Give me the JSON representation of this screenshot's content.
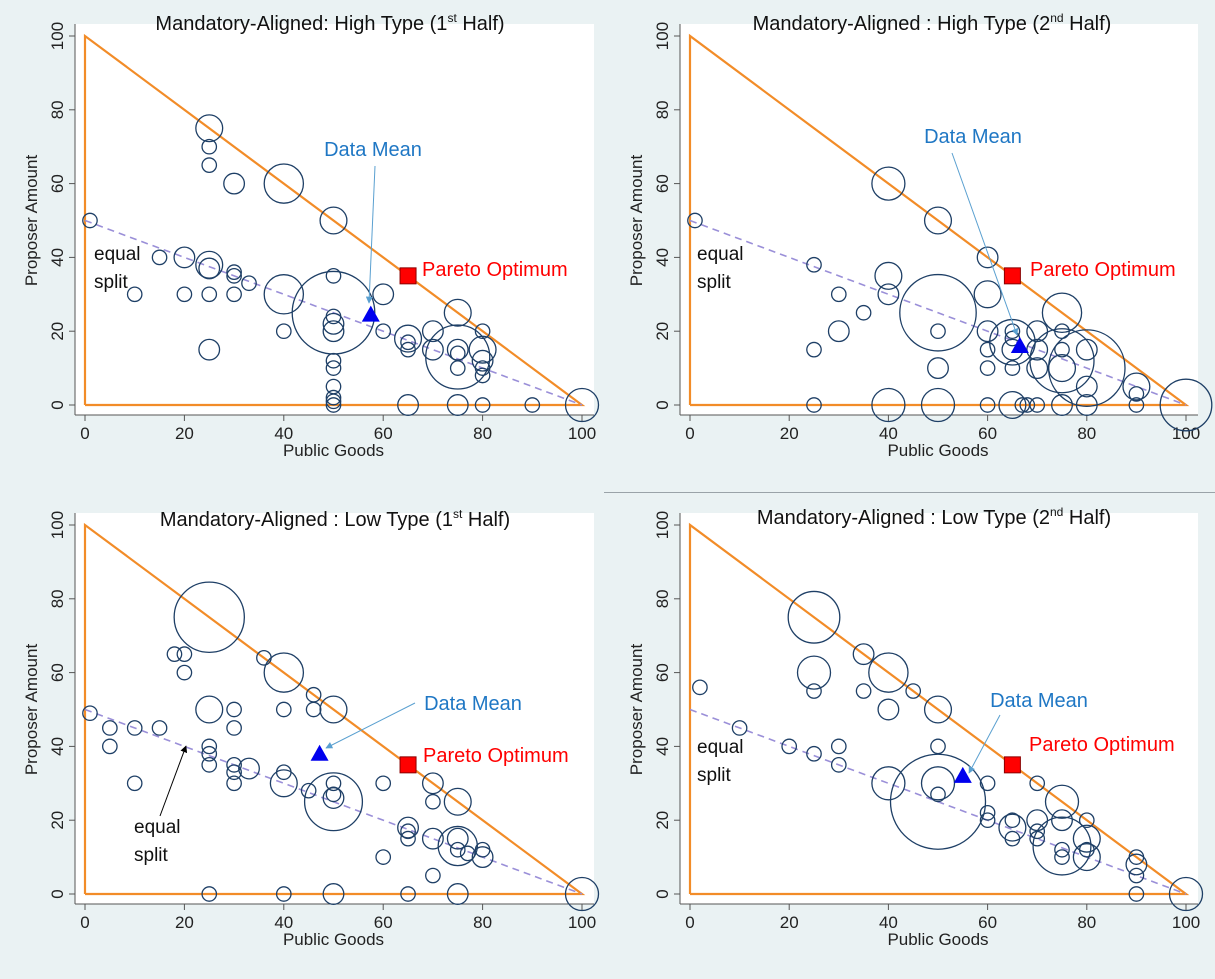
{
  "colors": {
    "background": "#eaf2f3",
    "plot_area": "#ffffff",
    "triangle": "#f28c28",
    "equal_split": "#9a8fd8",
    "bubble": "#1e3f66",
    "data_mean_label": "#1f77c4",
    "pareto_label": "#ff0000",
    "pareto_marker": "#ff0000",
    "mean_marker": "#0000ee",
    "arrow_mean": "#5aa0d0",
    "arrow_equal": "#000000"
  },
  "labels": {
    "data_mean": "Data Mean",
    "pareto": "Pareto Optimum",
    "equal_split_line1": "equal",
    "equal_split_line2": "split"
  },
  "chart_data": [
    {
      "type": "scatter",
      "title": "Mandatory-Aligned: High Type (1",
      "title_sup": "st",
      "title_end": " Half)",
      "xlabel": "Public Goods",
      "ylabel": "Proposer Amount",
      "xlim": [
        0,
        100
      ],
      "ylim": [
        0,
        100
      ],
      "xticks": [
        0,
        20,
        40,
        60,
        80,
        100
      ],
      "yticks": [
        0,
        20,
        40,
        60,
        80,
        100
      ],
      "grid": false,
      "pareto_optimum": [
        65,
        35
      ],
      "data_mean": [
        57.5,
        24.5
      ],
      "equal_split_line": [
        [
          0,
          50
        ],
        [
          100,
          0
        ]
      ],
      "points": [
        [
          1,
          50,
          2
        ],
        [
          10,
          30,
          2
        ],
        [
          15,
          40,
          2
        ],
        [
          20,
          40,
          3
        ],
        [
          20,
          30,
          2
        ],
        [
          25,
          75,
          4
        ],
        [
          25,
          70,
          2
        ],
        [
          25,
          65,
          2
        ],
        [
          25,
          38,
          4
        ],
        [
          25,
          37,
          3
        ],
        [
          25,
          30,
          2
        ],
        [
          25,
          15,
          3
        ],
        [
          30,
          60,
          3
        ],
        [
          30,
          36,
          2
        ],
        [
          30,
          35,
          2
        ],
        [
          30,
          30,
          2
        ],
        [
          33,
          33,
          2
        ],
        [
          40,
          60,
          6
        ],
        [
          40,
          30,
          6
        ],
        [
          40,
          20,
          2
        ],
        [
          50,
          50,
          4
        ],
        [
          50,
          35,
          2
        ],
        [
          50,
          25,
          13
        ],
        [
          50,
          24,
          2
        ],
        [
          50,
          22,
          3
        ],
        [
          50,
          20,
          3
        ],
        [
          50,
          12,
          2
        ],
        [
          50,
          10,
          2
        ],
        [
          50,
          5,
          2
        ],
        [
          50,
          2,
          2
        ],
        [
          50,
          1,
          2
        ],
        [
          50,
          0,
          2
        ],
        [
          60,
          30,
          3
        ],
        [
          60,
          20,
          2
        ],
        [
          65,
          18,
          4
        ],
        [
          65,
          17,
          2
        ],
        [
          65,
          15,
          2
        ],
        [
          65,
          0,
          3
        ],
        [
          70,
          20,
          3
        ],
        [
          70,
          15,
          3
        ],
        [
          75,
          25,
          4
        ],
        [
          75,
          15,
          3
        ],
        [
          75,
          14,
          2
        ],
        [
          75,
          13,
          10
        ],
        [
          75,
          10,
          2
        ],
        [
          75,
          0,
          3
        ],
        [
          80,
          20,
          2
        ],
        [
          80,
          15,
          4
        ],
        [
          80,
          12,
          3
        ],
        [
          80,
          10,
          2
        ],
        [
          80,
          8,
          2
        ],
        [
          80,
          0,
          2
        ],
        [
          90,
          0,
          2
        ],
        [
          100,
          0,
          5
        ]
      ]
    },
    {
      "type": "scatter",
      "title": "Mandatory-Aligned : High Type (2",
      "title_sup": "nd",
      "title_end": " Half)",
      "xlabel": "Public Goods",
      "ylabel": "Proposer Amount",
      "xlim": [
        0,
        100
      ],
      "ylim": [
        0,
        100
      ],
      "xticks": [
        0,
        20,
        40,
        60,
        80,
        100
      ],
      "yticks": [
        0,
        20,
        40,
        60,
        80,
        100
      ],
      "grid": false,
      "pareto_optimum": [
        65,
        35
      ],
      "data_mean": [
        66.5,
        16
      ],
      "equal_split_line": [
        [
          0,
          50
        ],
        [
          100,
          0
        ]
      ],
      "points": [
        [
          1,
          50,
          2
        ],
        [
          25,
          38,
          2
        ],
        [
          25,
          15,
          2
        ],
        [
          25,
          0,
          2
        ],
        [
          30,
          30,
          2
        ],
        [
          30,
          20,
          3
        ],
        [
          35,
          25,
          2
        ],
        [
          40,
          60,
          5
        ],
        [
          40,
          35,
          4
        ],
        [
          40,
          30,
          3
        ],
        [
          40,
          0,
          5
        ],
        [
          50,
          50,
          4
        ],
        [
          50,
          25,
          12
        ],
        [
          50,
          20,
          2
        ],
        [
          50,
          10,
          3
        ],
        [
          50,
          0,
          5
        ],
        [
          60,
          40,
          3
        ],
        [
          60,
          30,
          4
        ],
        [
          60,
          20,
          3
        ],
        [
          60,
          15,
          2
        ],
        [
          60,
          10,
          2
        ],
        [
          60,
          0,
          2
        ],
        [
          65,
          20,
          2
        ],
        [
          65,
          18,
          2
        ],
        [
          65,
          17,
          7
        ],
        [
          65,
          15,
          3
        ],
        [
          65,
          10,
          2
        ],
        [
          65,
          0,
          4
        ],
        [
          67,
          0,
          2
        ],
        [
          68,
          0,
          2
        ],
        [
          70,
          20,
          3
        ],
        [
          70,
          15,
          3
        ],
        [
          70,
          10,
          3
        ],
        [
          70,
          0,
          2
        ],
        [
          75,
          25,
          6
        ],
        [
          75,
          20,
          2
        ],
        [
          75,
          15,
          2
        ],
        [
          75,
          12,
          10
        ],
        [
          75,
          10,
          4
        ],
        [
          75,
          0,
          3
        ],
        [
          80,
          15,
          3
        ],
        [
          80,
          10,
          12
        ],
        [
          80,
          5,
          3
        ],
        [
          80,
          0,
          3
        ],
        [
          90,
          5,
          4
        ],
        [
          90,
          3,
          2
        ],
        [
          90,
          0,
          2
        ],
        [
          100,
          0,
          8
        ]
      ]
    },
    {
      "type": "scatter",
      "title": "Mandatory-Aligned : Low Type (1",
      "title_sup": "st",
      "title_end": " Half)",
      "xlabel": "Public Goods",
      "ylabel": "Proposer Amount",
      "xlim": [
        0,
        100
      ],
      "ylim": [
        0,
        100
      ],
      "xticks": [
        0,
        20,
        40,
        60,
        80,
        100
      ],
      "yticks": [
        0,
        20,
        40,
        60,
        80,
        100
      ],
      "grid": false,
      "pareto_optimum": [
        65,
        35
      ],
      "data_mean": [
        47.2,
        38
      ],
      "equal_split_line": [
        [
          0,
          50
        ],
        [
          100,
          0
        ]
      ],
      "points": [
        [
          1,
          49,
          2
        ],
        [
          5,
          45,
          2
        ],
        [
          5,
          40,
          2
        ],
        [
          10,
          45,
          2
        ],
        [
          10,
          30,
          2
        ],
        [
          15,
          45,
          2
        ],
        [
          18,
          65,
          2
        ],
        [
          20,
          65,
          2
        ],
        [
          20,
          60,
          2
        ],
        [
          25,
          75,
          11
        ],
        [
          25,
          50,
          4
        ],
        [
          25,
          40,
          2
        ],
        [
          25,
          38,
          2
        ],
        [
          25,
          35,
          2
        ],
        [
          25,
          0,
          2
        ],
        [
          30,
          50,
          2
        ],
        [
          30,
          45,
          2
        ],
        [
          30,
          35,
          2
        ],
        [
          30,
          33,
          2
        ],
        [
          30,
          30,
          2
        ],
        [
          33,
          34,
          3
        ],
        [
          36,
          64,
          2
        ],
        [
          40,
          60,
          6
        ],
        [
          40,
          50,
          2
        ],
        [
          40,
          33,
          2
        ],
        [
          40,
          30,
          4
        ],
        [
          40,
          0,
          2
        ],
        [
          45,
          28,
          2
        ],
        [
          46,
          54,
          2
        ],
        [
          46,
          50,
          2
        ],
        [
          50,
          50,
          4
        ],
        [
          50,
          30,
          2
        ],
        [
          50,
          27,
          2
        ],
        [
          50,
          26,
          3
        ],
        [
          50,
          25,
          9
        ],
        [
          50,
          0,
          3
        ],
        [
          60,
          30,
          2
        ],
        [
          60,
          10,
          2
        ],
        [
          65,
          18,
          3
        ],
        [
          65,
          17,
          2
        ],
        [
          65,
          15,
          2
        ],
        [
          65,
          0,
          2
        ],
        [
          70,
          30,
          3
        ],
        [
          70,
          25,
          2
        ],
        [
          70,
          15,
          3
        ],
        [
          70,
          5,
          2
        ],
        [
          75,
          25,
          4
        ],
        [
          75,
          15,
          3
        ],
        [
          75,
          13,
          6
        ],
        [
          75,
          12,
          2
        ],
        [
          75,
          0,
          3
        ],
        [
          77,
          11,
          2
        ],
        [
          80,
          12,
          2
        ],
        [
          80,
          10,
          3
        ],
        [
          100,
          0,
          5
        ]
      ]
    },
    {
      "type": "scatter",
      "title": "Mandatory-Aligned : Low Type (2",
      "title_sup": "nd",
      "title_end": " Half)",
      "xlabel": "Public Goods",
      "ylabel": "Proposer Amount",
      "xlim": [
        0,
        100
      ],
      "ylim": [
        0,
        100
      ],
      "xticks": [
        0,
        20,
        40,
        60,
        80,
        100
      ],
      "yticks": [
        0,
        20,
        40,
        60,
        80,
        100
      ],
      "grid": false,
      "pareto_optimum": [
        65,
        35
      ],
      "data_mean": [
        55,
        32
      ],
      "equal_split_line": [
        [
          0,
          50
        ],
        [
          100,
          0
        ]
      ],
      "points": [
        [
          2,
          56,
          2
        ],
        [
          10,
          45,
          2
        ],
        [
          20,
          40,
          2
        ],
        [
          25,
          75,
          8
        ],
        [
          25,
          60,
          5
        ],
        [
          25,
          55,
          2
        ],
        [
          25,
          38,
          2
        ],
        [
          30,
          40,
          2
        ],
        [
          30,
          35,
          2
        ],
        [
          35,
          65,
          3
        ],
        [
          35,
          55,
          2
        ],
        [
          40,
          60,
          6
        ],
        [
          40,
          50,
          3
        ],
        [
          40,
          30,
          5
        ],
        [
          45,
          55,
          2
        ],
        [
          50,
          50,
          4
        ],
        [
          50,
          40,
          2
        ],
        [
          50,
          30,
          5
        ],
        [
          50,
          27,
          2
        ],
        [
          50,
          25,
          15
        ],
        [
          60,
          30,
          2
        ],
        [
          60,
          22,
          2
        ],
        [
          60,
          20,
          2
        ],
        [
          65,
          20,
          2
        ],
        [
          65,
          18,
          4
        ],
        [
          65,
          15,
          2
        ],
        [
          70,
          30,
          2
        ],
        [
          70,
          20,
          3
        ],
        [
          70,
          17,
          2
        ],
        [
          70,
          15,
          2
        ],
        [
          75,
          25,
          5
        ],
        [
          75,
          20,
          3
        ],
        [
          75,
          12,
          2
        ],
        [
          75,
          10,
          2
        ],
        [
          75,
          13,
          9
        ],
        [
          80,
          20,
          2
        ],
        [
          80,
          15,
          4
        ],
        [
          80,
          12,
          2
        ],
        [
          80,
          10,
          4
        ],
        [
          90,
          10,
          2
        ],
        [
          90,
          8,
          3
        ],
        [
          90,
          5,
          2
        ],
        [
          90,
          0,
          2
        ],
        [
          100,
          0,
          5
        ]
      ]
    }
  ]
}
